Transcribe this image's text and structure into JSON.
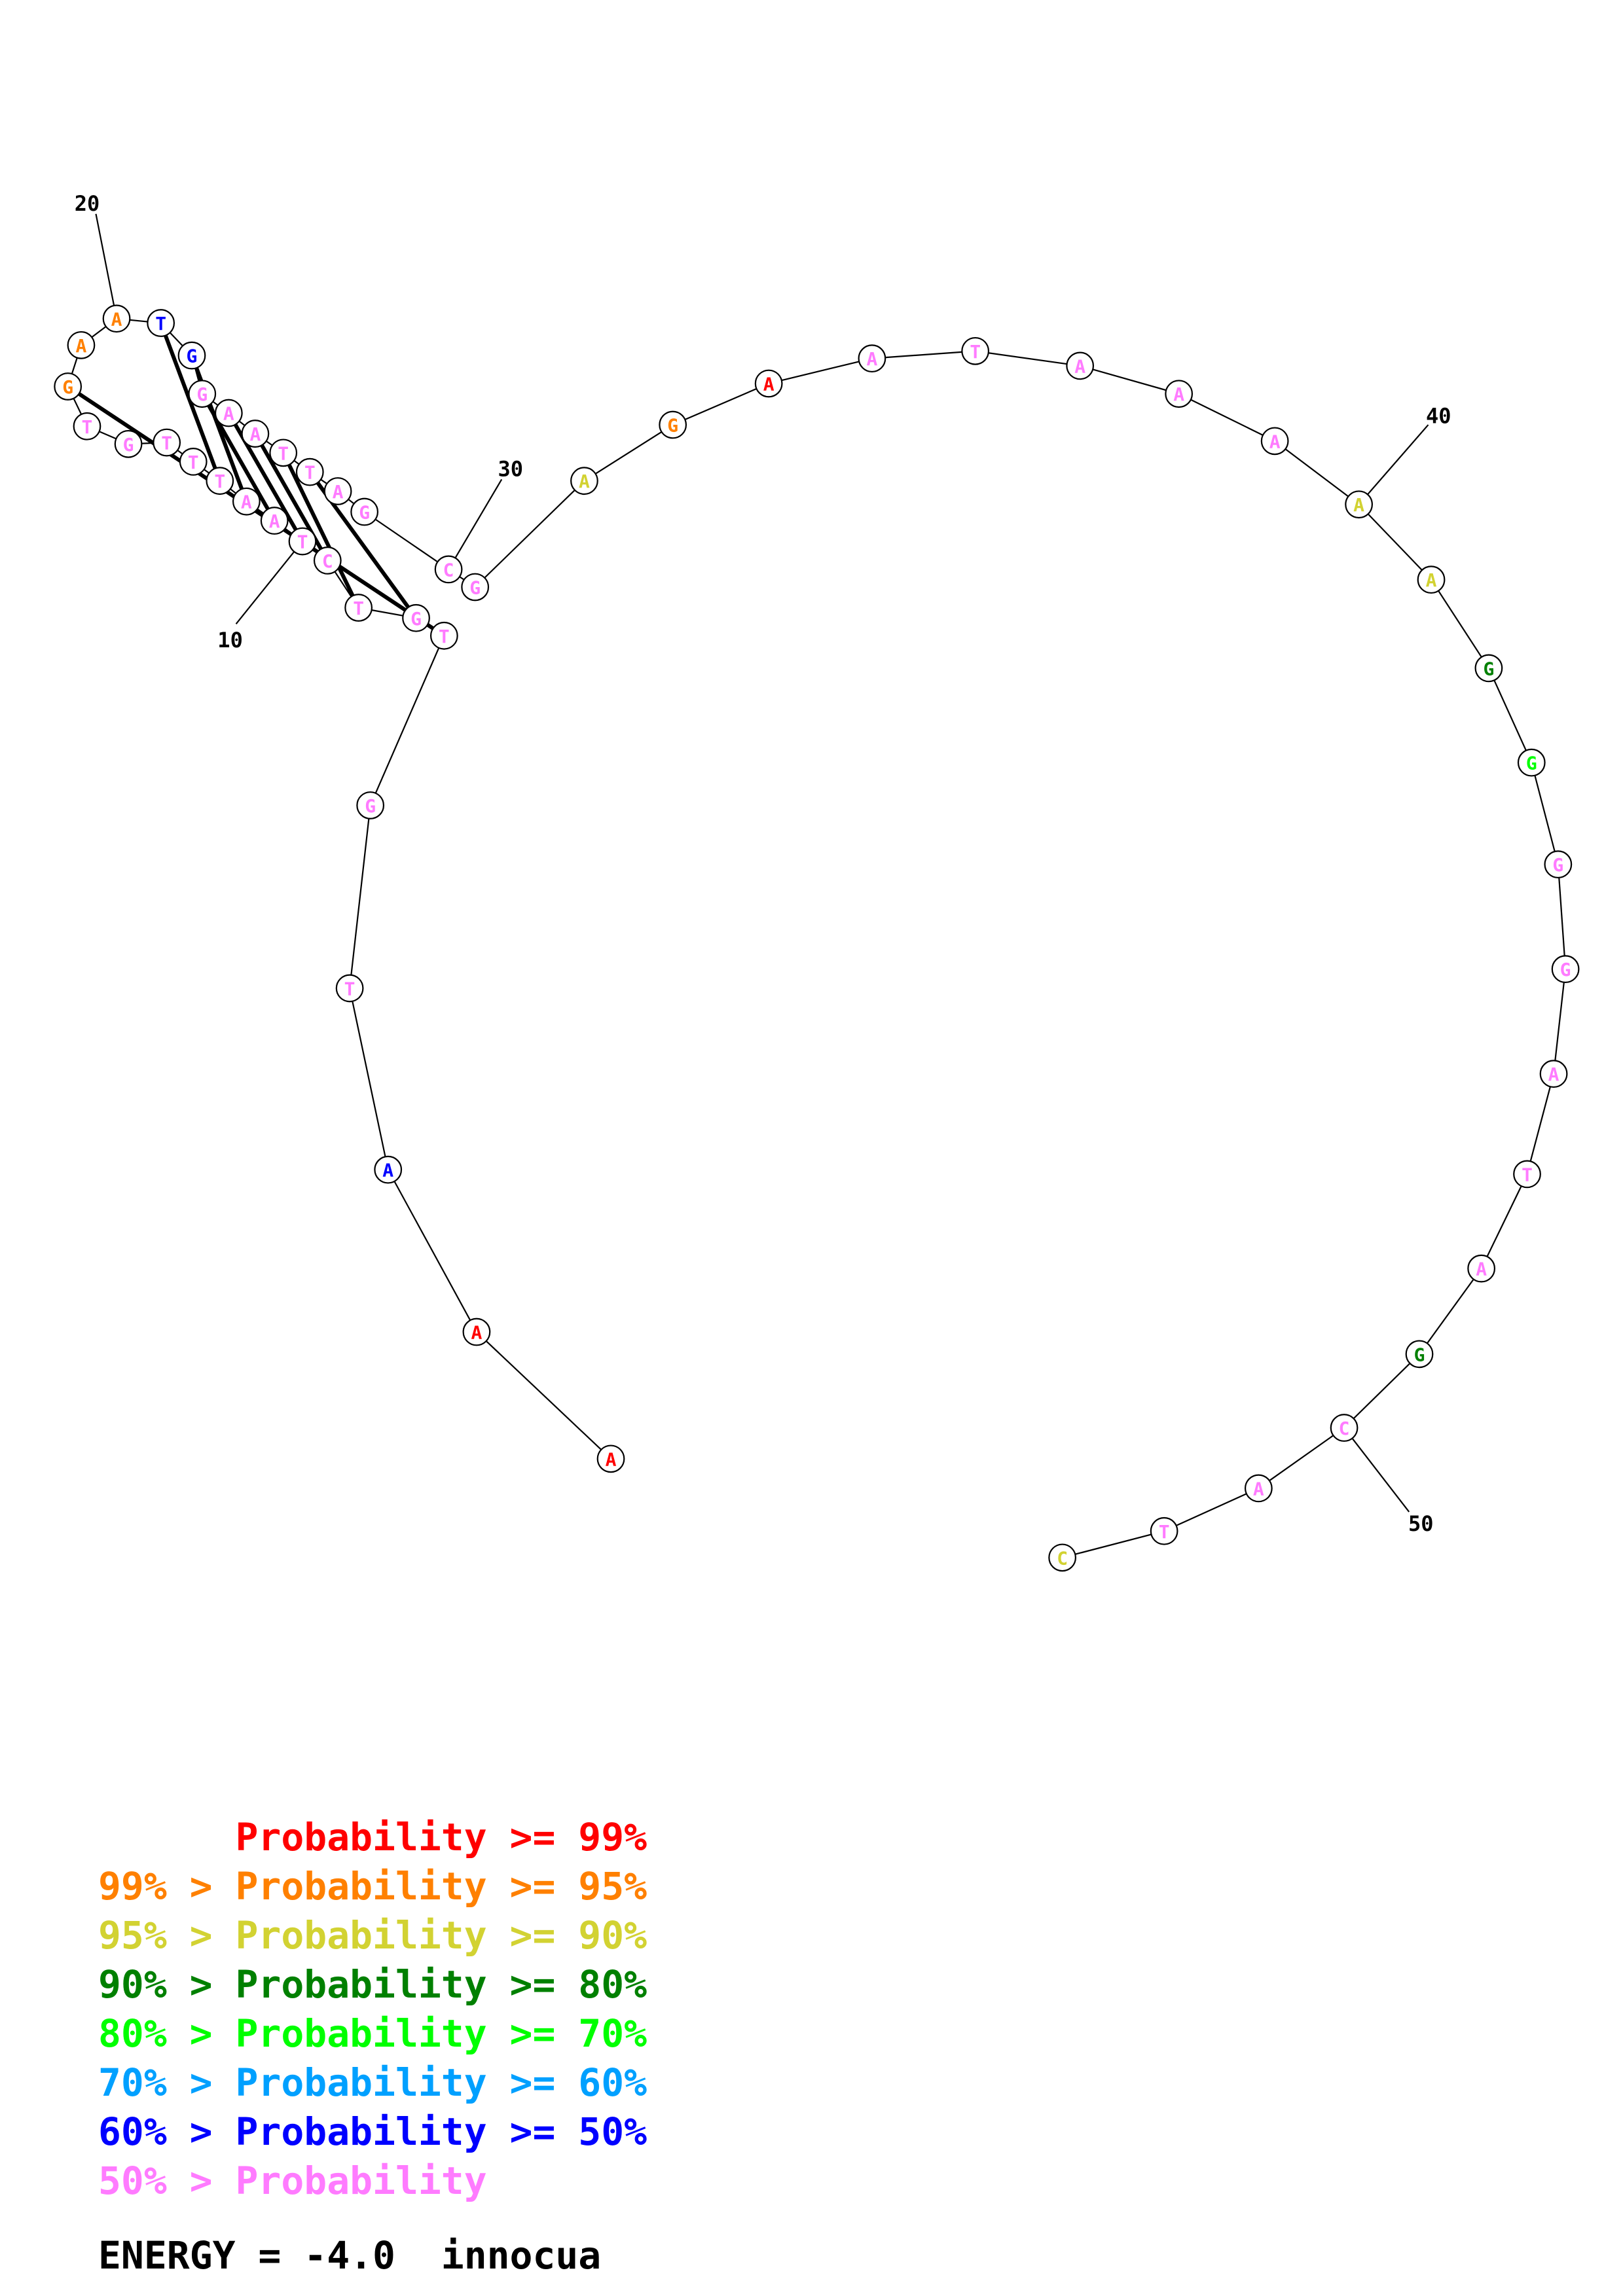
{
  "colors": {
    "red": "#ff0000",
    "orange": "#ff8000",
    "yellow": "#d2d232",
    "darkgreen": "#008000",
    "green": "#00ff00",
    "cyan": "#00a0ff",
    "blue": "#0000ff",
    "pink": "#ff7bff"
  },
  "structure": {
    "nucleotides": [
      {
        "base": "A",
        "color": "red"
      },
      {
        "base": "A",
        "color": "red"
      },
      {
        "base": "A",
        "color": "blue"
      },
      {
        "base": "T",
        "color": "pink"
      },
      {
        "base": "G",
        "color": "pink"
      },
      {
        "base": "T",
        "color": "pink"
      },
      {
        "base": "G",
        "color": "pink"
      },
      {
        "base": "T",
        "color": "pink"
      },
      {
        "base": "C",
        "color": "pink"
      },
      {
        "base": "T",
        "color": "pink"
      },
      {
        "base": "A",
        "color": "pink"
      },
      {
        "base": "A",
        "color": "pink"
      },
      {
        "base": "T",
        "color": "pink"
      },
      {
        "base": "T",
        "color": "pink"
      },
      {
        "base": "T",
        "color": "pink"
      },
      {
        "base": "G",
        "color": "pink"
      },
      {
        "base": "T",
        "color": "pink"
      },
      {
        "base": "G",
        "color": "orange"
      },
      {
        "base": "A",
        "color": "orange"
      },
      {
        "base": "A",
        "color": "orange"
      },
      {
        "base": "T",
        "color": "blue"
      },
      {
        "base": "G",
        "color": "blue"
      },
      {
        "base": "G",
        "color": "pink"
      },
      {
        "base": "A",
        "color": "pink"
      },
      {
        "base": "A",
        "color": "pink"
      },
      {
        "base": "T",
        "color": "pink"
      },
      {
        "base": "T",
        "color": "pink"
      },
      {
        "base": "A",
        "color": "pink"
      },
      {
        "base": "G",
        "color": "pink"
      },
      {
        "base": "C",
        "color": "pink"
      },
      {
        "base": "G",
        "color": "pink"
      },
      {
        "base": "A",
        "color": "yellow"
      },
      {
        "base": "G",
        "color": "orange"
      },
      {
        "base": "A",
        "color": "red"
      },
      {
        "base": "A",
        "color": "pink"
      },
      {
        "base": "T",
        "color": "pink"
      },
      {
        "base": "A",
        "color": "pink"
      },
      {
        "base": "A",
        "color": "pink"
      },
      {
        "base": "A",
        "color": "pink"
      },
      {
        "base": "A",
        "color": "yellow"
      },
      {
        "base": "A",
        "color": "yellow"
      },
      {
        "base": "G",
        "color": "darkgreen"
      },
      {
        "base": "G",
        "color": "green"
      },
      {
        "base": "G",
        "color": "pink"
      },
      {
        "base": "G",
        "color": "pink"
      },
      {
        "base": "A",
        "color": "pink"
      },
      {
        "base": "T",
        "color": "pink"
      },
      {
        "base": "A",
        "color": "pink"
      },
      {
        "base": "G",
        "color": "darkgreen"
      },
      {
        "base": "C",
        "color": "pink"
      },
      {
        "base": "A",
        "color": "pink"
      },
      {
        "base": "T",
        "color": "pink"
      },
      {
        "base": "C",
        "color": "yellow"
      }
    ],
    "pairs": [
      [
        5,
        17
      ],
      [
        6,
        26
      ],
      [
        7,
        25
      ],
      [
        8,
        24
      ],
      [
        9,
        23
      ],
      [
        10,
        22
      ],
      [
        11,
        21
      ],
      [
        12,
        20
      ]
    ],
    "position_labels": [
      "10",
      "20",
      "30",
      "40",
      "50"
    ]
  },
  "legend": [
    {
      "prefix": "",
      "text": "Probability >= 99%",
      "color": "red"
    },
    {
      "prefix": "99% > ",
      "text": "Probability >= 95%",
      "color": "orange"
    },
    {
      "prefix": "95% > ",
      "text": "Probability >= 90%",
      "color": "yellow"
    },
    {
      "prefix": "90% > ",
      "text": "Probability >= 80%",
      "color": "darkgreen"
    },
    {
      "prefix": "80% > ",
      "text": "Probability >= 70%",
      "color": "green"
    },
    {
      "prefix": "70% > ",
      "text": "Probability >= 60%",
      "color": "cyan"
    },
    {
      "prefix": "60% > ",
      "text": "Probability >= 50%",
      "color": "blue"
    },
    {
      "prefix": "50% > ",
      "text": "Probability",
      "color": "pink"
    }
  ],
  "footer": {
    "energy": "ENERGY = -4.0",
    "name": "innocua"
  }
}
